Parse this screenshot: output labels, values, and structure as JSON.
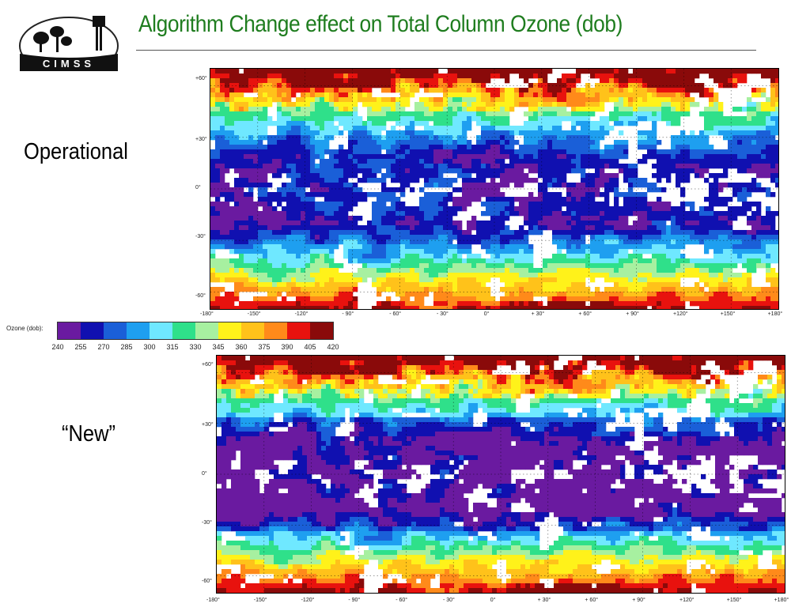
{
  "title": "Algorithm Change effect on Total Column Ozone (dob)",
  "logo": {
    "text": "CIMSS",
    "icon": "cimss-logo-icon"
  },
  "panels": [
    {
      "label": "Operational"
    },
    {
      "label": "“New”"
    }
  ],
  "lat_ticks": [
    "+60°",
    "+30°",
    "0°",
    "-30°",
    "-60°"
  ],
  "lon_ticks": [
    "-180°",
    "-150°",
    "-120°",
    "- 90°",
    "- 60°",
    "- 30°",
    "0°",
    "+ 30°",
    "+ 60°",
    "+ 90°",
    "+120°",
    "+150°",
    "+180°"
  ],
  "colorbar": {
    "label": "Ozone (dob):",
    "ticks": [
      "240",
      "255",
      "270",
      "285",
      "300",
      "315",
      "330",
      "345",
      "360",
      "375",
      "390",
      "405",
      "420"
    ],
    "colors": [
      "#6a1aa0",
      "#1010b0",
      "#1a5fd8",
      "#1e9ff0",
      "#6fe8ff",
      "#2fe08a",
      "#a7f0a0",
      "#fff21a",
      "#ffc21a",
      "#ff8a1a",
      "#e8120e",
      "#8a0a0a"
    ]
  }
}
